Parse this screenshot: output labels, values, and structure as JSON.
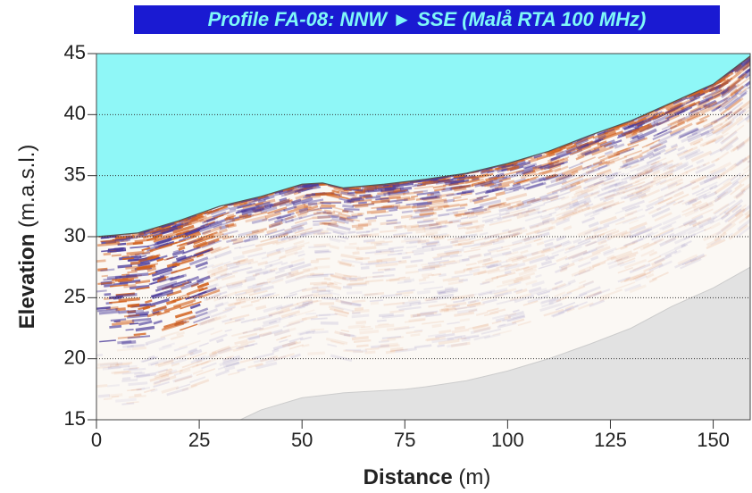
{
  "chart_data": {
    "type": "radargram",
    "title": "Profile FA-08: NNW ► SSE (Malå RTA 100 MHz)",
    "xlabel": "Distance",
    "xlabel_unit": "(m)",
    "ylabel": "Elevation",
    "ylabel_unit": "(m.a.s.l.)",
    "xlim": [
      0,
      159
    ],
    "xticks": [
      0,
      25,
      50,
      75,
      100,
      125,
      150
    ],
    "ylim": [
      15,
      45
    ],
    "yticks": [
      15,
      20,
      25,
      30,
      35,
      40,
      45
    ],
    "grid": "y",
    "surface": {
      "x": [
        0,
        10,
        20,
        30,
        40,
        50,
        55,
        60,
        70,
        80,
        90,
        100,
        110,
        120,
        130,
        140,
        150,
        159
      ],
      "values": [
        30,
        30.3,
        31.3,
        32.5,
        33.3,
        34.3,
        34.4,
        34,
        34.3,
        34.7,
        35.2,
        36,
        37,
        38.3,
        39.5,
        41,
        42.5,
        44.8
      ]
    },
    "base": {
      "x": [
        0,
        35,
        40,
        50,
        60,
        75,
        80,
        90,
        100,
        110,
        120,
        130,
        140,
        150,
        159
      ],
      "values": [
        15,
        15,
        15.8,
        16.8,
        17.2,
        17.5,
        17.7,
        18.2,
        19,
        20,
        21.2,
        22.5,
        24.3,
        25.8,
        27.5
      ]
    },
    "colors": {
      "air": "#8ff7f7",
      "unimaged": "#e2e2e2",
      "positive": "#d2601c",
      "negative": "#4a3a9a",
      "title_box": "#1a1ad2",
      "title_text": "#7ff8f8"
    }
  }
}
